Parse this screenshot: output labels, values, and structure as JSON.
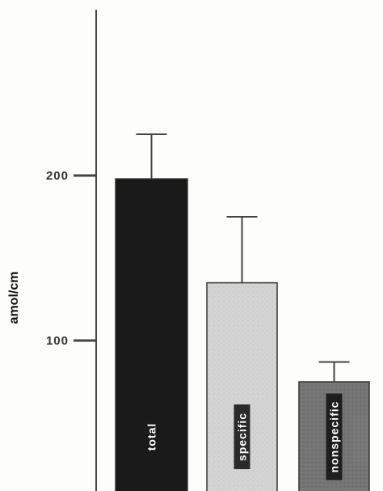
{
  "chart_data": {
    "type": "bar",
    "categories": [
      "total",
      "specific",
      "nonspecific"
    ],
    "values": [
      198,
      135,
      75
    ],
    "errors": [
      27,
      40,
      12
    ],
    "ylabel": "amol/cm",
    "yticks": [
      100,
      200
    ],
    "ytick_labels": [
      "100",
      "200"
    ],
    "ylim": [
      0,
      290
    ],
    "colors": {
      "total": "#1a1a1a",
      "specific": "#d2d2d2",
      "nonspecific": "#777777",
      "axis": "#444444"
    }
  }
}
